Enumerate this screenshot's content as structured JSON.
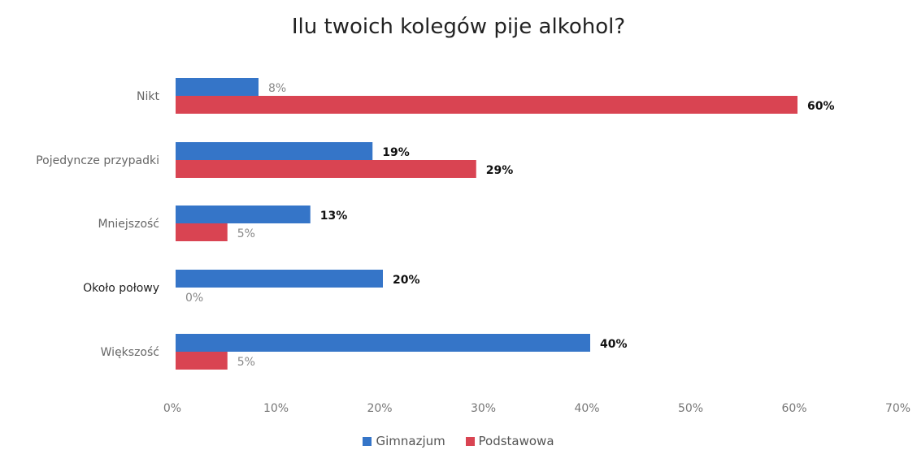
{
  "chart_data": {
    "type": "bar",
    "orientation": "horizontal",
    "title": "Ilu twoich kolegów pije alkohol?",
    "categories": [
      "Nikt",
      "Pojedyncze przypadki",
      "Mniejszość",
      "Około połowy",
      "Większość"
    ],
    "category_labels": [
      "Nikt",
      "Pojedyncze przypadki",
      "Mniejszość",
      "Około połowy",
      "Większość"
    ],
    "series": [
      {
        "name": "Gimnazjum",
        "color": "#3575c8",
        "values": [
          8,
          19,
          13,
          20,
          40
        ],
        "labels": [
          "8%",
          "19%",
          "13%",
          "20%",
          "40%"
        ]
      },
      {
        "name": "Podstawowa",
        "color": "#d94452",
        "values": [
          60,
          29,
          5,
          0,
          5
        ],
        "labels": [
          "60%",
          "29%",
          "5%",
          "0%",
          "5%"
        ]
      }
    ],
    "xlim": [
      0,
      70
    ],
    "xticks": [
      "0%",
      "10%",
      "20%",
      "30%",
      "40%",
      "50%",
      "60%",
      "70%"
    ],
    "xlabel": "",
    "ylabel": "",
    "grid": false,
    "legend_position": "bottom"
  }
}
